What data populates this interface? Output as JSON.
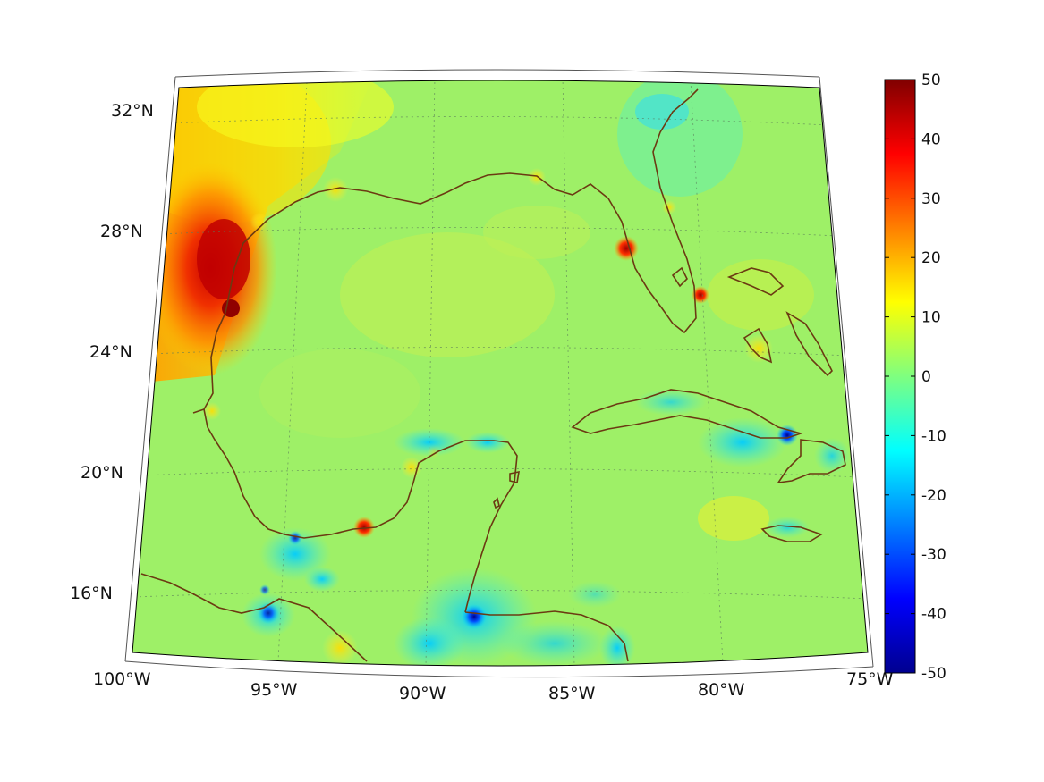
{
  "map": {
    "projection": "conic",
    "region": "Gulf of Mexico and Caribbean",
    "lon_range": [
      -100,
      -75
    ],
    "lat_range": [
      14,
      33
    ],
    "lat_labels": [
      "32°N",
      "28°N",
      "24°N",
      "20°N",
      "16°N"
    ],
    "lon_labels": [
      "100°W",
      "95°W",
      "90°W",
      "85°W",
      "80°W",
      "75°W"
    ],
    "gridlines": "dotted",
    "coastline_color": "#6b3a12"
  },
  "colorbar": {
    "colormap": "jet",
    "min": -50,
    "max": 50,
    "tick_values": [
      50,
      40,
      30,
      20,
      10,
      0,
      -10,
      -20,
      -30,
      -40,
      -50
    ],
    "tick_labels": [
      "50",
      "40",
      "30",
      "20",
      "10",
      "0",
      "-10",
      "-20",
      "-30",
      "-40",
      "-50"
    ],
    "placement": "right"
  }
}
